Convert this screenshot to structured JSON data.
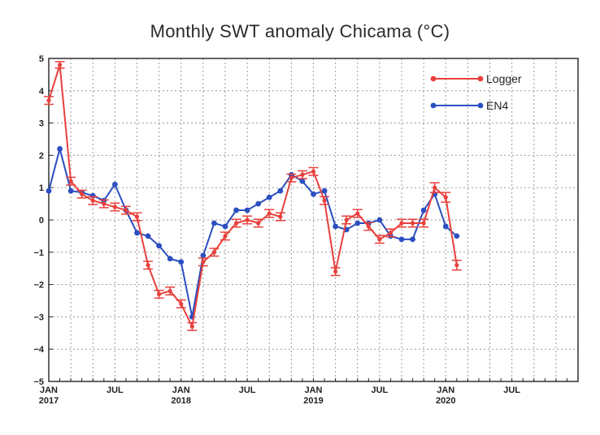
{
  "chart_data": {
    "type": "line",
    "title": "Monthly SWT anomaly Chicama (°C)",
    "xlabel": "",
    "ylabel": "",
    "ylim": [
      -5,
      5
    ],
    "yticks": [
      5,
      4,
      3,
      2,
      1,
      0,
      -1,
      -2,
      -3,
      -4,
      -5
    ],
    "ytick_labels": [
      "5",
      "4",
      "3",
      "2",
      "1",
      "0",
      "−1",
      "−2",
      "−3",
      "−4",
      "−5"
    ],
    "xlim": [
      "2017-01",
      "2021-01"
    ],
    "xticks": [
      {
        "month": "2017-01",
        "line1": "JAN",
        "line2": "2017"
      },
      {
        "month": "2017-07",
        "line1": "JUL",
        "line2": ""
      },
      {
        "month": "2018-01",
        "line1": "JAN",
        "line2": "2018"
      },
      {
        "month": "2018-07",
        "line1": "JUL",
        "line2": ""
      },
      {
        "month": "2019-01",
        "line1": "JAN",
        "line2": "2019"
      },
      {
        "month": "2019-07",
        "line1": "JUL",
        "line2": ""
      },
      {
        "month": "2020-01",
        "line1": "JAN",
        "line2": "2020"
      },
      {
        "month": "2020-07",
        "line1": "JUL",
        "line2": ""
      }
    ],
    "grid": true,
    "legend_position": "top-right",
    "series": [
      {
        "name": "Logger",
        "color": "#e8403c",
        "error_bars": true,
        "points": [
          {
            "month": "2017-01",
            "y": 3.7,
            "err": 0.12
          },
          {
            "month": "2017-02",
            "y": 4.8,
            "err": 0.1
          },
          {
            "month": "2017-03",
            "y": 1.2,
            "err": 0.12
          },
          {
            "month": "2017-04",
            "y": 0.8,
            "err": 0.12
          },
          {
            "month": "2017-05",
            "y": 0.6,
            "err": 0.12
          },
          {
            "month": "2017-06",
            "y": 0.5,
            "err": 0.12
          },
          {
            "month": "2017-07",
            "y": 0.4,
            "err": 0.12
          },
          {
            "month": "2017-08",
            "y": 0.3,
            "err": 0.12
          },
          {
            "month": "2017-09",
            "y": 0.1,
            "err": 0.12
          },
          {
            "month": "2017-10",
            "y": -1.4,
            "err": 0.12
          },
          {
            "month": "2017-11",
            "y": -2.3,
            "err": 0.12
          },
          {
            "month": "2017-12",
            "y": -2.2,
            "err": 0.12
          },
          {
            "month": "2018-01",
            "y": -2.6,
            "err": 0.12
          },
          {
            "month": "2018-02",
            "y": -3.3,
            "err": 0.12
          },
          {
            "month": "2018-03",
            "y": -1.3,
            "err": 0.12
          },
          {
            "month": "2018-04",
            "y": -1.0,
            "err": 0.12
          },
          {
            "month": "2018-05",
            "y": -0.5,
            "err": 0.12
          },
          {
            "month": "2018-06",
            "y": -0.1,
            "err": 0.12
          },
          {
            "month": "2018-07",
            "y": 0.0,
            "err": 0.12
          },
          {
            "month": "2018-08",
            "y": -0.1,
            "err": 0.12
          },
          {
            "month": "2018-09",
            "y": 0.2,
            "err": 0.12
          },
          {
            "month": "2018-10",
            "y": 0.1,
            "err": 0.12
          },
          {
            "month": "2018-11",
            "y": 1.3,
            "err": 0.12
          },
          {
            "month": "2018-12",
            "y": 1.4,
            "err": 0.12
          },
          {
            "month": "2019-01",
            "y": 1.5,
            "err": 0.12
          },
          {
            "month": "2019-02",
            "y": 0.6,
            "err": 0.12
          },
          {
            "month": "2019-03",
            "y": -1.6,
            "err": 0.12
          },
          {
            "month": "2019-04",
            "y": 0.0,
            "err": 0.12
          },
          {
            "month": "2019-05",
            "y": 0.2,
            "err": 0.12
          },
          {
            "month": "2019-06",
            "y": -0.2,
            "err": 0.12
          },
          {
            "month": "2019-07",
            "y": -0.6,
            "err": 0.12
          },
          {
            "month": "2019-08",
            "y": -0.4,
            "err": 0.12
          },
          {
            "month": "2019-09",
            "y": -0.1,
            "err": 0.12
          },
          {
            "month": "2019-10",
            "y": -0.1,
            "err": 0.12
          },
          {
            "month": "2019-11",
            "y": -0.1,
            "err": 0.12
          },
          {
            "month": "2019-12",
            "y": 1.0,
            "err": 0.15
          },
          {
            "month": "2020-01",
            "y": 0.7,
            "err": 0.15
          },
          {
            "month": "2020-02",
            "y": -1.4,
            "err": 0.15
          }
        ]
      },
      {
        "name": "EN4",
        "color": "#2b4fc0",
        "error_bars": false,
        "points": [
          {
            "month": "2017-01",
            "y": 0.9
          },
          {
            "month": "2017-02",
            "y": 2.2
          },
          {
            "month": "2017-03",
            "y": 0.9
          },
          {
            "month": "2017-04",
            "y": 0.85
          },
          {
            "month": "2017-05",
            "y": 0.75
          },
          {
            "month": "2017-06",
            "y": 0.6
          },
          {
            "month": "2017-07",
            "y": 1.1
          },
          {
            "month": "2017-08",
            "y": 0.3
          },
          {
            "month": "2017-09",
            "y": -0.4
          },
          {
            "month": "2017-10",
            "y": -0.5
          },
          {
            "month": "2017-11",
            "y": -0.8
          },
          {
            "month": "2017-12",
            "y": -1.2
          },
          {
            "month": "2018-01",
            "y": -1.3
          },
          {
            "month": "2018-02",
            "y": -3.0
          },
          {
            "month": "2018-03",
            "y": -1.1
          },
          {
            "month": "2018-04",
            "y": -0.1
          },
          {
            "month": "2018-05",
            "y": -0.2
          },
          {
            "month": "2018-06",
            "y": 0.3
          },
          {
            "month": "2018-07",
            "y": 0.3
          },
          {
            "month": "2018-08",
            "y": 0.5
          },
          {
            "month": "2018-09",
            "y": 0.7
          },
          {
            "month": "2018-10",
            "y": 0.9
          },
          {
            "month": "2018-11",
            "y": 1.4
          },
          {
            "month": "2018-12",
            "y": 1.2
          },
          {
            "month": "2019-01",
            "y": 0.8
          },
          {
            "month": "2019-02",
            "y": 0.9
          },
          {
            "month": "2019-03",
            "y": -0.2
          },
          {
            "month": "2019-04",
            "y": -0.3
          },
          {
            "month": "2019-05",
            "y": -0.1
          },
          {
            "month": "2019-06",
            "y": -0.1
          },
          {
            "month": "2019-07",
            "y": 0.0
          },
          {
            "month": "2019-08",
            "y": -0.5
          },
          {
            "month": "2019-09",
            "y": -0.6
          },
          {
            "month": "2019-10",
            "y": -0.6
          },
          {
            "month": "2019-11",
            "y": 0.3
          },
          {
            "month": "2019-12",
            "y": 0.8
          },
          {
            "month": "2020-01",
            "y": -0.2
          },
          {
            "month": "2020-02",
            "y": -0.5
          }
        ]
      }
    ]
  }
}
